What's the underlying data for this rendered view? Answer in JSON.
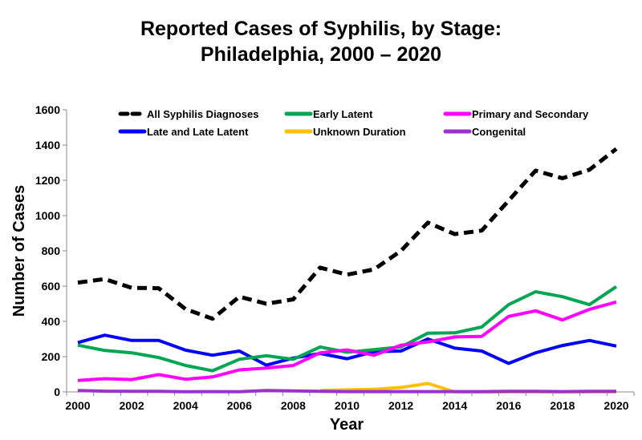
{
  "chart_data": {
    "type": "line",
    "title_line1": "Reported Cases of Syphilis, by Stage:",
    "title_line2": "Philadelphia, 2000 – 2020",
    "xlabel": "Year",
    "ylabel": "Number of Cases",
    "ylim": [
      0,
      1600
    ],
    "yticks": [
      "0",
      "200",
      "400",
      "600",
      "800",
      "1000",
      "1200",
      "1400",
      "1600"
    ],
    "xticks": [
      "2000",
      "2002",
      "2004",
      "2006",
      "2008",
      "2010",
      "2012",
      "2014",
      "2016",
      "2018",
      "2020"
    ],
    "x": [
      2000,
      2001,
      2002,
      2003,
      2004,
      2005,
      2006,
      2007,
      2008,
      2009,
      2010,
      2011,
      2012,
      2013,
      2014,
      2015,
      2016,
      2017,
      2018,
      2019,
      2020
    ],
    "grid": false,
    "legend_position": "top",
    "series": [
      {
        "name": "All Syphilis Diagnoses",
        "color": "#000000",
        "dashed": true,
        "values": [
          620,
          640,
          590,
          588,
          470,
          415,
          540,
          500,
          525,
          705,
          665,
          695,
          800,
          960,
          895,
          915,
          1085,
          1255,
          1212,
          1260,
          1378
        ]
      },
      {
        "name": "Early Latent",
        "color": "#00a651",
        "dashed": false,
        "values": [
          265,
          235,
          222,
          195,
          150,
          120,
          185,
          205,
          185,
          255,
          225,
          240,
          255,
          333,
          335,
          368,
          495,
          568,
          540,
          495,
          597
        ]
      },
      {
        "name": "Primary and Secondary",
        "color": "#ff00ff",
        "dashed": false,
        "values": [
          65,
          75,
          70,
          98,
          72,
          85,
          125,
          135,
          150,
          222,
          238,
          208,
          265,
          283,
          312,
          315,
          428,
          460,
          408,
          468,
          510
        ]
      },
      {
        "name": "Late and Late Latent",
        "color": "#0000ff",
        "dashed": false,
        "values": [
          280,
          322,
          292,
          292,
          237,
          208,
          232,
          152,
          192,
          218,
          188,
          228,
          232,
          300,
          248,
          232,
          162,
          222,
          263,
          292,
          260
        ]
      },
      {
        "name": "Unknown Duration",
        "color": "#ffc000",
        "dashed": false,
        "values": [
          null,
          null,
          null,
          null,
          null,
          null,
          null,
          null,
          null,
          8,
          12,
          15,
          25,
          48,
          0,
          0,
          0,
          0,
          0,
          0,
          0
        ]
      },
      {
        "name": "Congenital",
        "color": "#9933cc",
        "dashed": false,
        "values": [
          8,
          4,
          3,
          3,
          1,
          2,
          1,
          8,
          6,
          3,
          2,
          2,
          2,
          2,
          2,
          2,
          3,
          3,
          2,
          3,
          3
        ]
      }
    ]
  }
}
